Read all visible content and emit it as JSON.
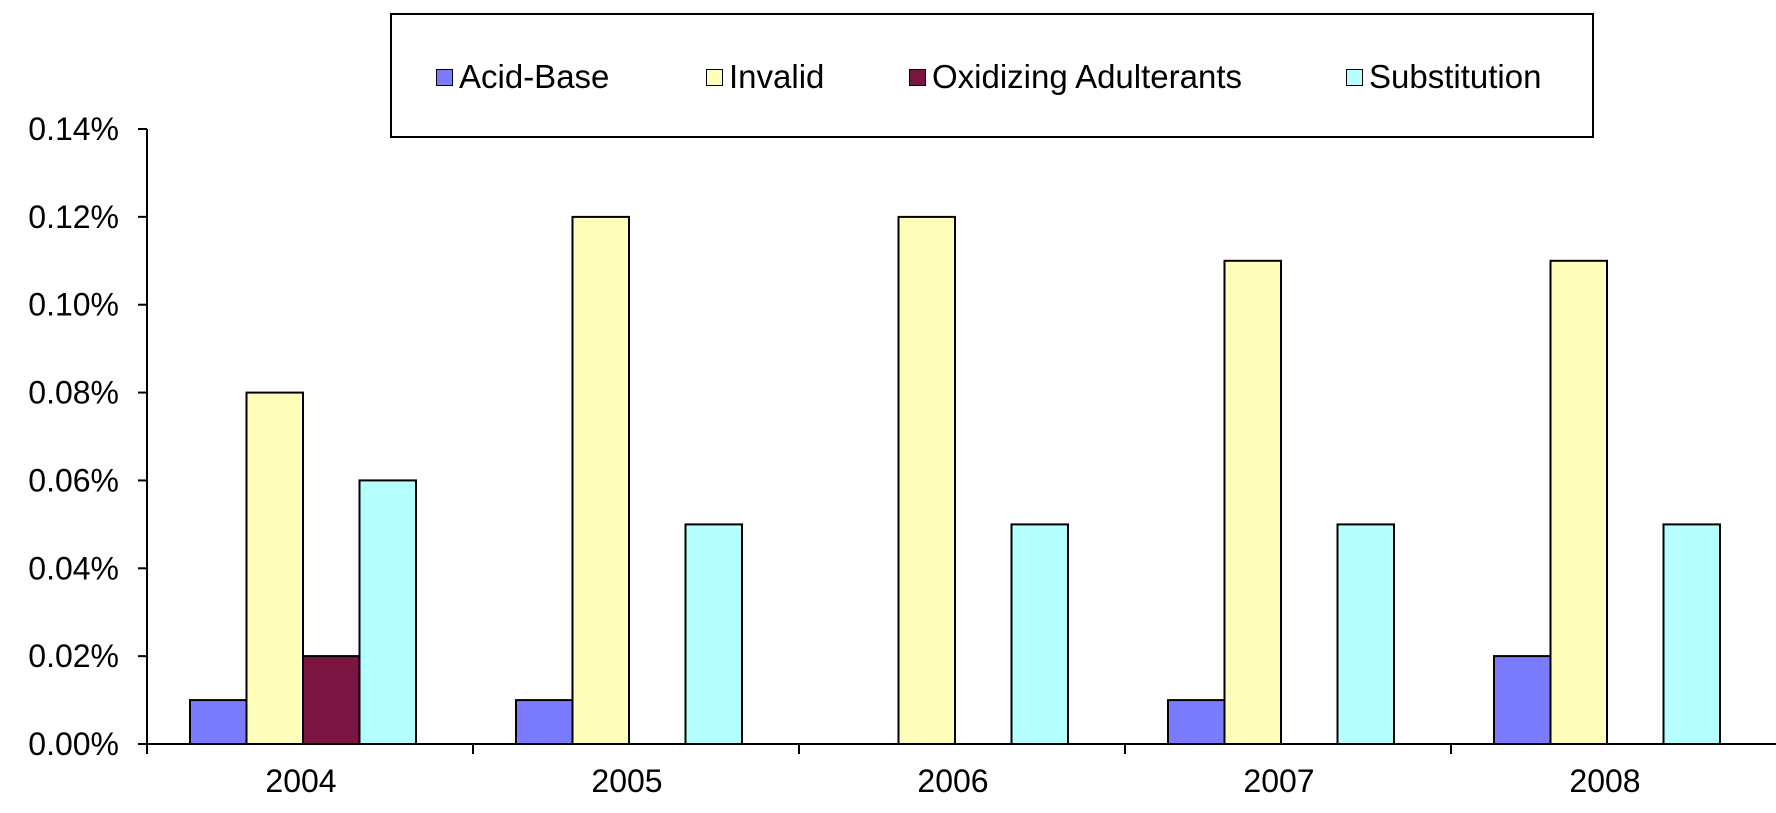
{
  "chart_data": {
    "type": "bar",
    "categories": [
      "2004",
      "2005",
      "2006",
      "2007",
      "2008"
    ],
    "series": [
      {
        "name": "Acid-Base",
        "color": "#7b7bff",
        "values": [
          0.01,
          0.01,
          0,
          0.01,
          0.02
        ]
      },
      {
        "name": "Invalid",
        "color": "#ffffbb",
        "values": [
          0.08,
          0.12,
          0.12,
          0.11,
          0.11
        ]
      },
      {
        "name": "Oxidizing Adulterants",
        "color": "#7a1440",
        "values": [
          0.02,
          0,
          0,
          0,
          0
        ]
      },
      {
        "name": "Substitution",
        "color": "#b5ffff",
        "values": [
          0.06,
          0.05,
          0.05,
          0.05,
          0.05
        ]
      }
    ],
    "ylim": [
      0,
      0.14
    ],
    "ytick_values": [
      0,
      0.02,
      0.04,
      0.06,
      0.08,
      0.1,
      0.12,
      0.14
    ],
    "ytick_labels": [
      "0.00%",
      "0.02%",
      "0.04%",
      "0.06%",
      "0.08%",
      "0.10%",
      "0.12%",
      "0.14%"
    ],
    "legend_position": "top",
    "grid": false,
    "title": "",
    "xlabel": "",
    "ylabel": ""
  }
}
